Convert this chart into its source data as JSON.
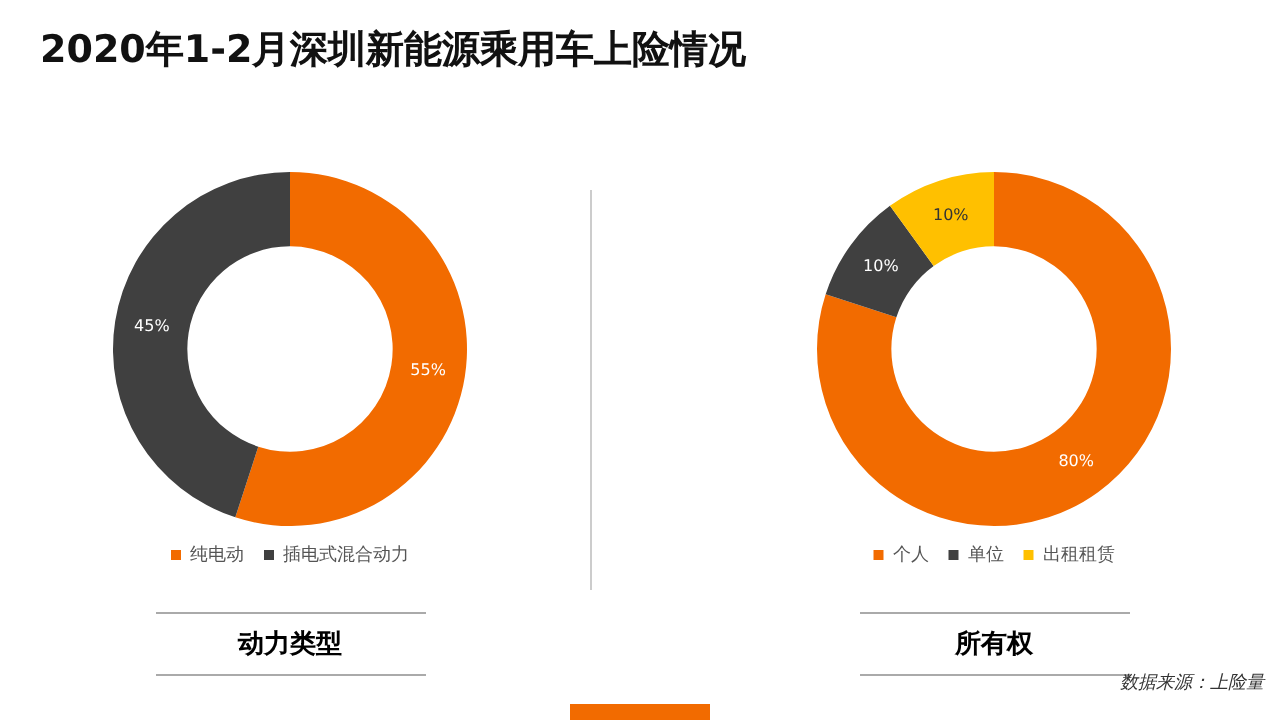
{
  "chart_data": [
    {
      "type": "donut",
      "title": "2020年1-2月深圳新能源乘用车上险情况",
      "xlabel": "动力类型",
      "categories": [
        "纯电动",
        "插电式混合动力"
      ],
      "values": [
        55,
        45
      ],
      "colors": [
        "#f26b00",
        "#404040"
      ],
      "value_labels": [
        "55%",
        "45%"
      ],
      "legend": "bottom"
    },
    {
      "type": "donut",
      "xlabel": "所有权",
      "categories": [
        "个人",
        "单位",
        "出租租赁"
      ],
      "values": [
        80,
        10,
        10
      ],
      "colors": [
        "#f26b00",
        "#404040",
        "#ffc000"
      ],
      "value_labels": [
        "80%",
        "10%",
        "10%"
      ],
      "legend": "bottom",
      "annotations": [
        "数据来源：上险量"
      ]
    }
  ]
}
